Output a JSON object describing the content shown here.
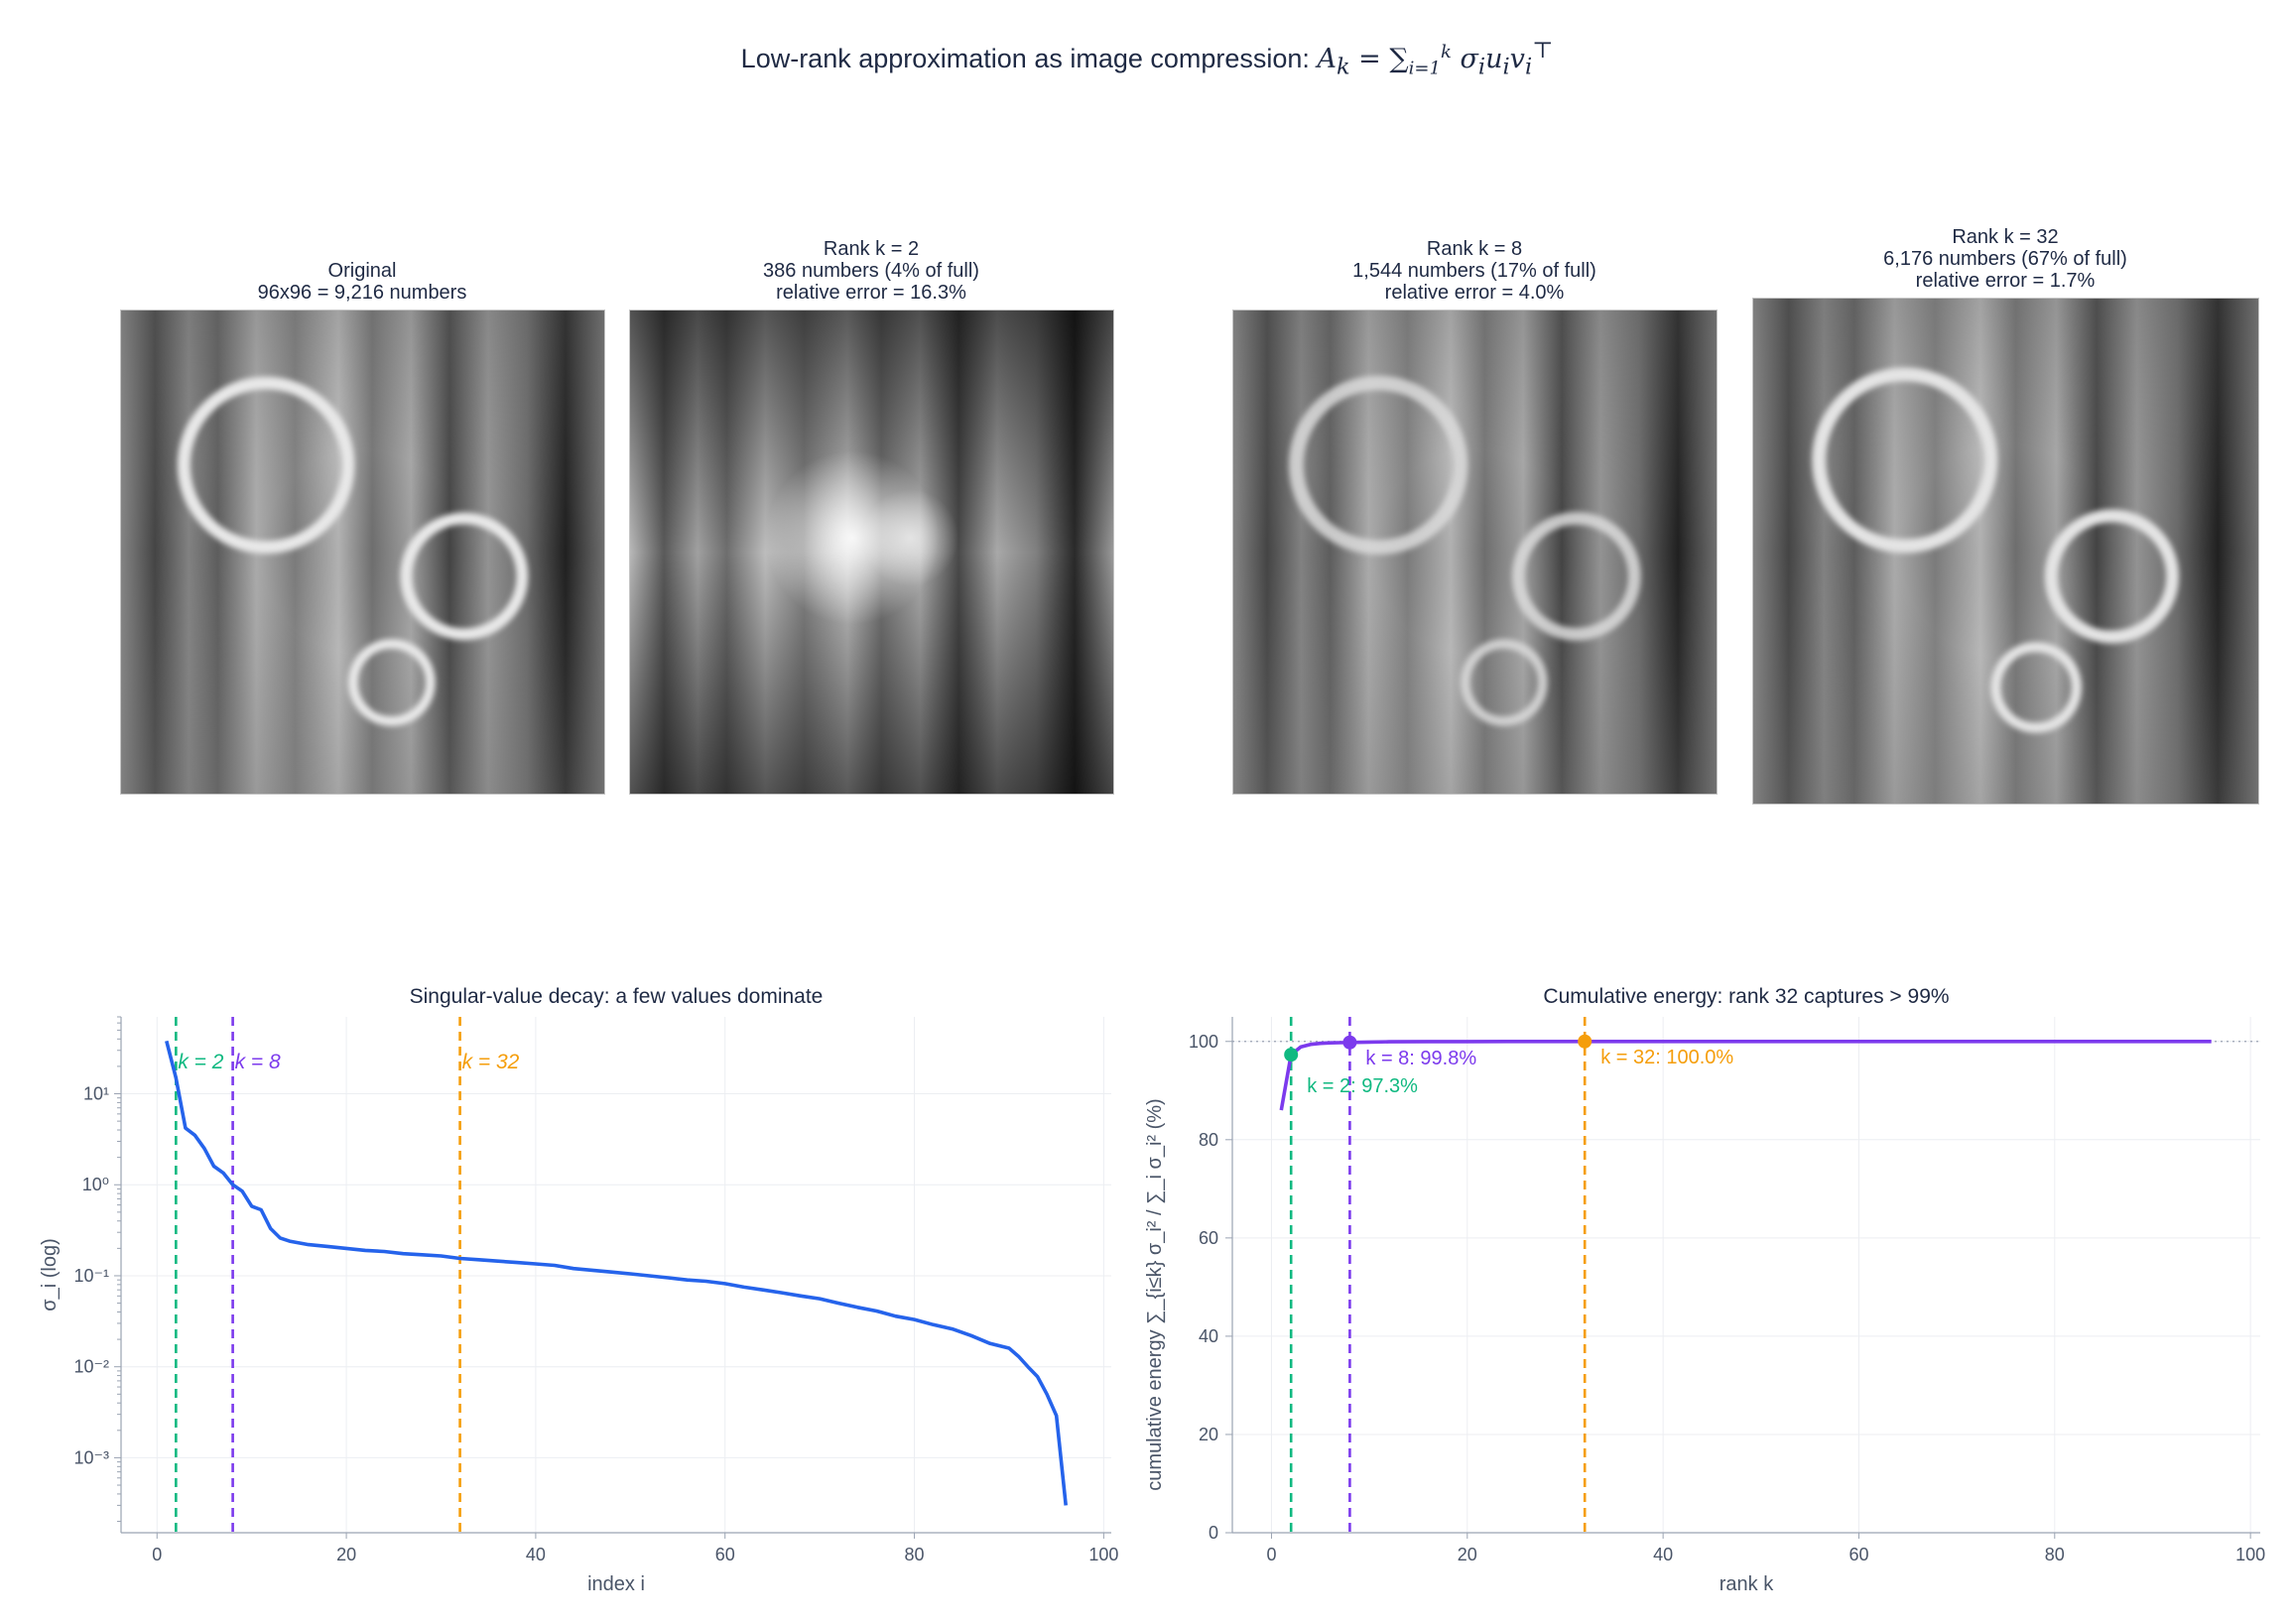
{
  "figure": {
    "suptitle": "Low-rank approximation as image compression: ",
    "suptitle_formula": "A_k = ∑_{i=1}^{k} σ_i u_i v_i^⊤"
  },
  "panels": [
    {
      "title_line1": "Original",
      "title_line2": "96x96 = 9,216 numbers",
      "title_line3": ""
    },
    {
      "title_line1": "Rank k = 2",
      "title_line2": "386 numbers (4% of full)",
      "title_line3": "relative error = 16.3%"
    },
    {
      "title_line1": "Rank k = 8",
      "title_line2": "1,544 numbers (17% of full)",
      "title_line3": "relative error = 4.0%"
    },
    {
      "title_line1": "Rank k = 32",
      "title_line2": "6,176 numbers (67% of full)",
      "title_line3": "relative error = 1.7%"
    }
  ],
  "chart_data": [
    {
      "type": "line",
      "title": "Singular-value decay: a few values dominate",
      "xlabel": "index i",
      "ylabel": "σ_i (log)",
      "yscale": "log",
      "xlim": [
        -3.8,
        100.8
      ],
      "ylim": [
        0.00015,
        70
      ],
      "xticks": [
        0,
        20,
        40,
        60,
        80,
        100
      ],
      "yticks": [
        {
          "value": 10,
          "label": "10¹"
        },
        {
          "value": 1,
          "label": "10⁰"
        },
        {
          "value": 0.1,
          "label": "10⁻¹"
        },
        {
          "value": 0.01,
          "label": "10⁻²"
        },
        {
          "value": 0.001,
          "label": "10⁻³"
        }
      ],
      "grid": true,
      "series": [
        {
          "color": "#2563eb",
          "x": [
            1,
            2,
            3,
            4,
            5,
            6,
            7,
            8,
            9,
            10,
            11,
            12,
            13,
            14,
            16,
            18,
            20,
            22,
            24,
            26,
            28,
            30,
            32,
            34,
            36,
            38,
            40,
            42,
            44,
            46,
            48,
            50,
            52,
            54,
            56,
            58,
            60,
            62,
            64,
            66,
            68,
            70,
            72,
            74,
            76,
            78,
            80,
            82,
            84,
            86,
            88,
            90,
            91,
            92,
            93,
            94,
            95,
            96
          ],
          "y": [
            38,
            15,
            4.2,
            3.5,
            2.5,
            1.6,
            1.35,
            1.0,
            0.85,
            0.58,
            0.53,
            0.33,
            0.26,
            0.24,
            0.22,
            0.21,
            0.2,
            0.19,
            0.185,
            0.175,
            0.17,
            0.165,
            0.155,
            0.15,
            0.145,
            0.14,
            0.135,
            0.13,
            0.12,
            0.115,
            0.11,
            0.105,
            0.1,
            0.095,
            0.09,
            0.087,
            0.082,
            0.075,
            0.07,
            0.065,
            0.06,
            0.056,
            0.05,
            0.045,
            0.041,
            0.036,
            0.033,
            0.029,
            0.026,
            0.022,
            0.018,
            0.016,
            0.013,
            0.01,
            0.0078,
            0.005,
            0.0029,
            0.0003
          ]
        }
      ],
      "vlines": [
        {
          "x": 2,
          "label": "k = 2",
          "color": "#10b981"
        },
        {
          "x": 8,
          "label": "k = 8",
          "color": "#7c3aed"
        },
        {
          "x": 32,
          "label": "k = 32",
          "color": "#f59e0b"
        }
      ]
    },
    {
      "type": "line",
      "title": "Cumulative energy: rank 32 captures > 99%",
      "xlabel": "rank k",
      "ylabel": "cumulative energy  ∑_{i≤k} σ_i² / ∑_i σ_i²  (%)",
      "xlim": [
        -4,
        101
      ],
      "ylim": [
        0,
        105
      ],
      "xticks": [
        0,
        20,
        40,
        60,
        80,
        100
      ],
      "yticks": [
        0,
        20,
        40,
        60,
        80,
        100
      ],
      "grid": true,
      "hline": 100,
      "series": [
        {
          "color": "#7c3aed",
          "x": [
            1,
            2,
            3,
            4,
            5,
            6,
            7,
            8,
            10,
            12,
            16,
            20,
            24,
            28,
            32,
            40,
            50,
            60,
            70,
            80,
            90,
            96
          ],
          "y": [
            86.0,
            97.3,
            98.9,
            99.4,
            99.6,
            99.7,
            99.75,
            99.8,
            99.88,
            99.93,
            99.97,
            99.98,
            99.99,
            99.99,
            100.0,
            100,
            100,
            100,
            100,
            100,
            100,
            100
          ]
        }
      ],
      "markers": [
        {
          "x": 2,
          "y": 97.3,
          "label": "k = 2: 97.3%",
          "color": "#10b981"
        },
        {
          "x": 8,
          "y": 99.8,
          "label": "k = 8: 99.8%",
          "color": "#7c3aed"
        },
        {
          "x": 32,
          "y": 100.0,
          "label": "k = 32: 100.0%",
          "color": "#f59e0b"
        }
      ]
    }
  ]
}
